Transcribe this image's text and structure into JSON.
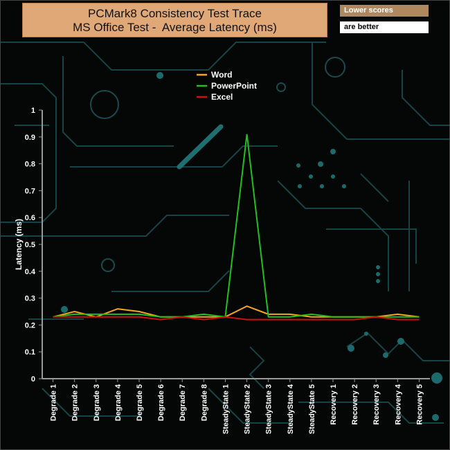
{
  "header": {
    "title_line1": "PCMark8 Consistency Test Trace",
    "title_line2": "MS Office Test -  Average Latency (ms)",
    "note_line1": "Lower scores",
    "note_line2": "are better"
  },
  "chart_data": {
    "type": "line",
    "title": "PCMark8 Consistency Test Trace MS Office Test - Average Latency (ms)",
    "xlabel": "",
    "ylabel": "Latency (ms)",
    "ylim": [
      0,
      1
    ],
    "yticks": [
      "0",
      "0.1",
      "0.2",
      "0.3",
      "0.4",
      "0.5",
      "0.6",
      "0.7",
      "0.8",
      "0.9",
      "1"
    ],
    "grid": false,
    "legend_position": "top-center",
    "categories": [
      "Degrade 1",
      "Degrade 2",
      "Degrade 3",
      "Degrade 4",
      "Degrade 5",
      "Degrade 6",
      "Degrade 7",
      "Degrade 8",
      "SteadyState 1",
      "SteadyState 2",
      "SteadyState 3",
      "SteadyState 4",
      "SteadyState 5",
      "Recovery 1",
      "Recovery 2",
      "Recovery 3",
      "Recovery 4",
      "Recovery 5"
    ],
    "series": [
      {
        "name": "Word",
        "color": "#f5a623",
        "values": [
          0.23,
          0.25,
          0.23,
          0.26,
          0.25,
          0.23,
          0.23,
          0.23,
          0.23,
          0.27,
          0.24,
          0.24,
          0.23,
          0.23,
          0.23,
          0.23,
          0.24,
          0.23
        ]
      },
      {
        "name": "PowerPoint",
        "color": "#22c01e",
        "values": [
          0.23,
          0.24,
          0.24,
          0.24,
          0.24,
          0.23,
          0.23,
          0.24,
          0.23,
          0.91,
          0.23,
          0.23,
          0.24,
          0.23,
          0.23,
          0.23,
          0.23,
          0.23
        ]
      },
      {
        "name": "Excel",
        "color": "#cc1111",
        "values": [
          0.23,
          0.23,
          0.23,
          0.23,
          0.23,
          0.22,
          0.23,
          0.22,
          0.23,
          0.22,
          0.22,
          0.22,
          0.22,
          0.22,
          0.22,
          0.23,
          0.22,
          0.22
        ]
      }
    ]
  }
}
